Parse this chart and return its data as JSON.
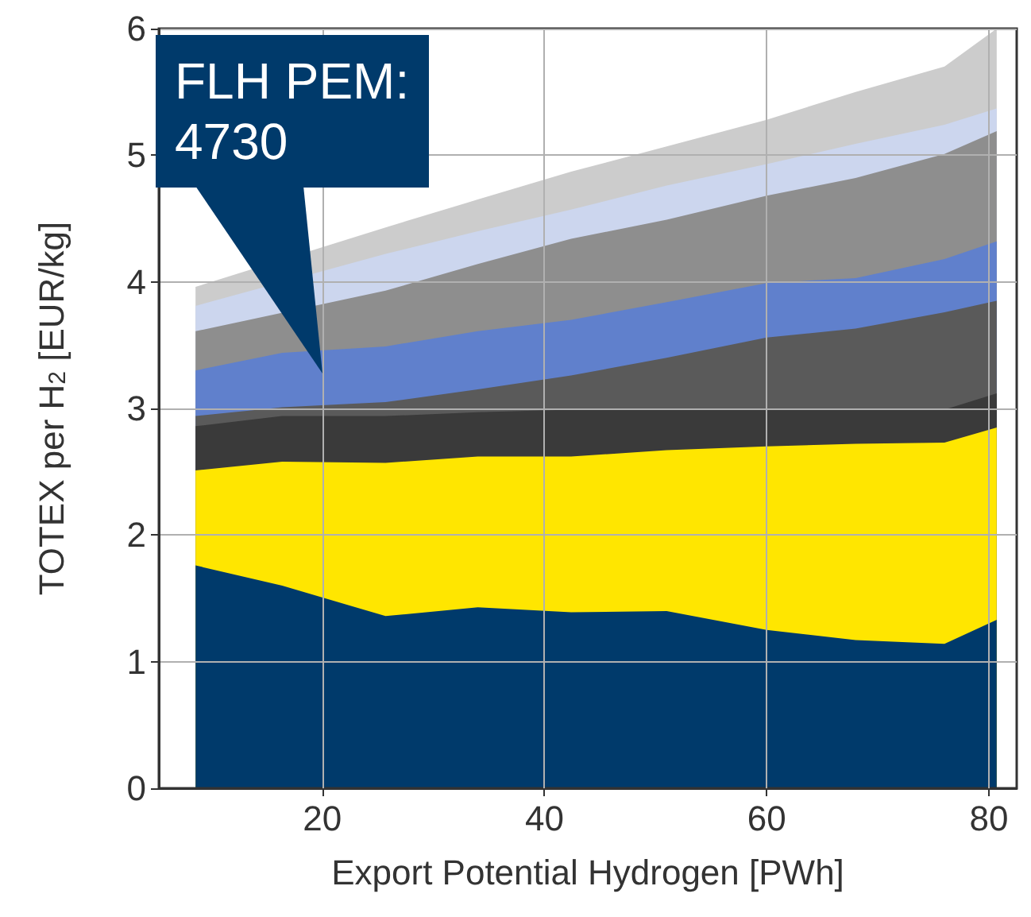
{
  "chart_data": {
    "type": "area",
    "stacked": true,
    "xlabel": "Export Potential Hydrogen [PWh]",
    "ylabel": "TOTEX per H$_{2}$ [EUR/kg]",
    "x": [
      8.6,
      16.4,
      25.7,
      34,
      42.4,
      51,
      60,
      68,
      76,
      80.7
    ],
    "series": [
      {
        "color": "#003a6b",
        "values": [
          1.76,
          1.6,
          1.36,
          1.43,
          1.39,
          1.4,
          1.25,
          1.17,
          1.14,
          1.33
        ]
      },
      {
        "color": "#ffe600",
        "values": [
          0.75,
          0.98,
          1.21,
          1.19,
          1.23,
          1.27,
          1.45,
          1.55,
          1.59,
          1.52
        ]
      },
      {
        "color": "#3a3a3a",
        "values": [
          0.35,
          0.36,
          0.37,
          0.35,
          0.37,
          0.32,
          0.29,
          0.27,
          0.26,
          0.27
        ]
      },
      {
        "color": "#5a5a5a",
        "values": [
          0.08,
          0.07,
          0.11,
          0.18,
          0.27,
          0.41,
          0.57,
          0.64,
          0.77,
          0.73
        ]
      },
      {
        "color": "#6080cc",
        "values": [
          0.36,
          0.43,
          0.44,
          0.46,
          0.44,
          0.44,
          0.43,
          0.4,
          0.42,
          0.47
        ]
      },
      {
        "color": "#8e8e8e",
        "values": [
          0.31,
          null,
          0.44,
          0.53,
          0.64,
          0.65,
          0.69,
          0.79,
          0.83,
          0.87
        ]
      },
      {
        "color": "#ccd6ee",
        "values": [
          0.2,
          null,
          0.29,
          0.26,
          0.23,
          0.27,
          0.25,
          0.27,
          0.23,
          0.18
        ]
      },
      {
        "color": "#cccccc",
        "values": [
          0.15,
          null,
          0.21,
          0.25,
          0.3,
          0.31,
          0.35,
          0.41,
          0.46,
          0.63
        ]
      }
    ],
    "xlim": [
      5.3,
      82.5
    ],
    "xticks": [
      20,
      40,
      60,
      80
    ],
    "ylim": [
      0,
      6
    ],
    "yticks": [
      0,
      1,
      2,
      3,
      4,
      5,
      6
    ],
    "grid": true,
    "annotations": [
      "FLH PEM:\n4730"
    ]
  }
}
